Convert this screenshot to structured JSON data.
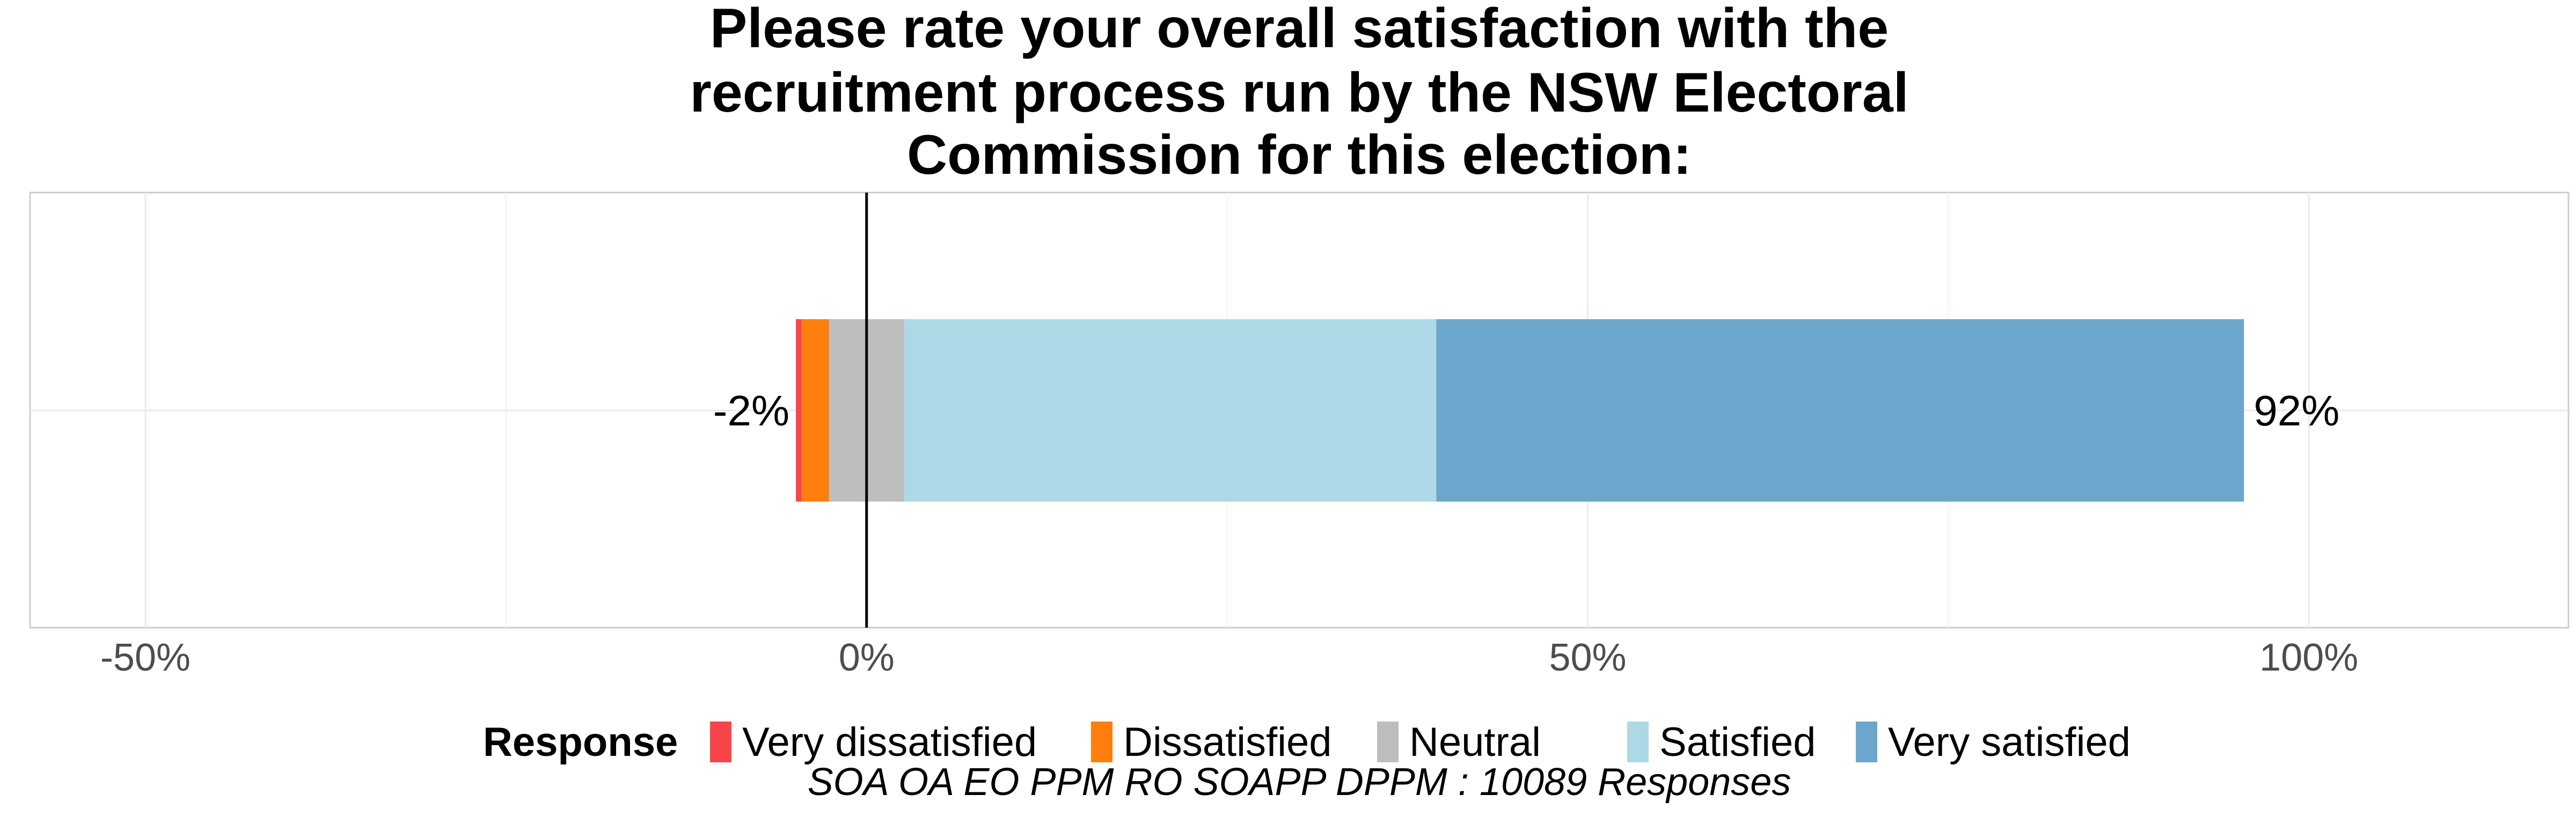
{
  "chart_data": {
    "type": "bar",
    "orientation": "horizontal",
    "stacked": "diverging",
    "title": "Please rate your overall satisfaction with the recruitment process run by the NSW Electoral Commission for this election:",
    "title_lines": [
      "Please rate your overall satisfaction with the",
      "recruitment process run by the NSW Electoral",
      "Commission for this election:"
    ],
    "xlim": [
      -58,
      118
    ],
    "x_ticks": [
      {
        "value": -50,
        "label": "-50%"
      },
      {
        "value": 0,
        "label": "0%"
      },
      {
        "value": 50,
        "label": "50%"
      },
      {
        "value": 100,
        "label": "100%"
      }
    ],
    "grid": true,
    "series": [
      {
        "name": "Very dissatisfied",
        "start": -4.9,
        "end": -4.5,
        "color": "#f8444a"
      },
      {
        "name": "Dissatisfied",
        "start": -4.5,
        "end": -2.6,
        "color": "#fe7f0e"
      },
      {
        "name": "Neutral",
        "start": -2.6,
        "end": 2.6,
        "color": "#bebebe"
      },
      {
        "name": "Satisfied",
        "start": 2.6,
        "end": 39.5,
        "color": "#add8e6"
      },
      {
        "name": "Very satisfied",
        "start": 39.5,
        "end": 95.5,
        "color": "#6ca6cd"
      }
    ],
    "annotations": {
      "negative_label": "-2%",
      "positive_label": "92%"
    },
    "legend": {
      "title": "Response",
      "position": "bottom",
      "items": [
        "Very dissatisfied",
        "Dissatisfied",
        "Neutral",
        "Satisfied",
        "Very satisfied"
      ]
    },
    "caption": "SOA OA EO PPM RO SOAPP DPPM : 10089 Responses"
  }
}
